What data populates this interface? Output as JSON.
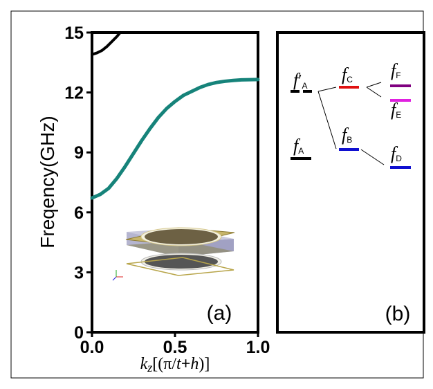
{
  "chart_data": [
    {
      "panel": "(a)",
      "type": "line",
      "ylabel": "Freqency(GHz)",
      "xlabel": {
        "k": "k",
        "z": "z",
        "rest": "[(π/",
        "t": "t",
        "plus": "+",
        "h": "h",
        "close": ")]"
      },
      "xlim": [
        0,
        1
      ],
      "ylim": [
        0,
        15
      ],
      "x_ticks": [
        "0.0",
        "0.5",
        "1.0"
      ],
      "y_ticks": [
        "0",
        "3",
        "6",
        "9",
        "12",
        "15"
      ],
      "series": [
        {
          "color": "#16837a",
          "x": [
            0,
            0.05,
            0.1,
            0.15,
            0.2,
            0.25,
            0.3,
            0.35,
            0.4,
            0.45,
            0.5,
            0.55,
            0.6,
            0.65,
            0.7,
            0.75,
            0.8,
            0.85,
            0.9,
            0.95,
            1.0
          ],
          "y": [
            6.72,
            6.9,
            7.2,
            7.7,
            8.3,
            8.95,
            9.6,
            10.2,
            10.75,
            11.2,
            11.55,
            11.85,
            12.05,
            12.25,
            12.4,
            12.5,
            12.56,
            12.6,
            12.63,
            12.64,
            12.65
          ]
        },
        {
          "color": "#000000",
          "x": [
            0,
            0.03,
            0.06,
            0.09,
            0.12,
            0.15,
            0.17
          ],
          "y": [
            13.9,
            13.98,
            14.1,
            14.3,
            14.55,
            14.8,
            15.0
          ]
        }
      ],
      "inset": "split-ring-resonator-unit-cell"
    },
    {
      "panel": "(b)",
      "type": "level-diagram",
      "levels": [
        {
          "id": "fA",
          "base": "f",
          "sub": "A",
          "color": "#000000",
          "style": "solid"
        },
        {
          "id": "fA2",
          "base": "f",
          "prime": "′",
          "sub": "A",
          "color": "#000000",
          "style": "dashed"
        },
        {
          "id": "fB",
          "base": "f",
          "sub": "B",
          "color": "#1010d0"
        },
        {
          "id": "fC",
          "base": "f",
          "sub": "C",
          "color": "#e01010"
        },
        {
          "id": "fD",
          "base": "f",
          "sub": "D",
          "color": "#1010d0"
        },
        {
          "id": "fE",
          "base": "f",
          "sub": "E",
          "color": "#e020e0"
        },
        {
          "id": "fF",
          "base": "f",
          "sub": "F",
          "color": "#800080"
        }
      ]
    }
  ]
}
